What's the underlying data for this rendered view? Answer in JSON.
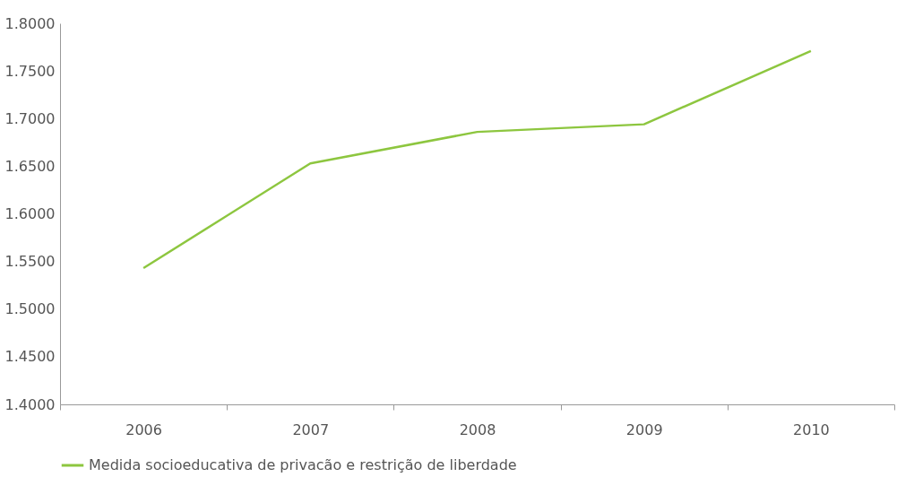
{
  "chart_data": {
    "type": "line",
    "categories": [
      "2006",
      "2007",
      "2008",
      "2009",
      "2010"
    ],
    "series": [
      {
        "name": "Medida socioeducativa de privacão e restrição de liberdade",
        "color": "#8dc63f",
        "values": [
          1.543,
          1.653,
          1.686,
          1.694,
          1.771
        ]
      }
    ],
    "ylim": [
      1.4,
      1.8
    ],
    "yticks": [
      {
        "value": 1.4,
        "label": "1.4000"
      },
      {
        "value": 1.45,
        "label": "1.4500"
      },
      {
        "value": 1.5,
        "label": "1.5000"
      },
      {
        "value": 1.55,
        "label": "1.5500"
      },
      {
        "value": 1.6,
        "label": "1.6000"
      },
      {
        "value": 1.65,
        "label": "1.6500"
      },
      {
        "value": 1.7,
        "label": "1.7000"
      },
      {
        "value": 1.75,
        "label": "1.7500"
      },
      {
        "value": 1.8,
        "label": "1.8000"
      }
    ],
    "grid": false,
    "legend": "bottom",
    "marker": "none",
    "line_style": "solid"
  }
}
